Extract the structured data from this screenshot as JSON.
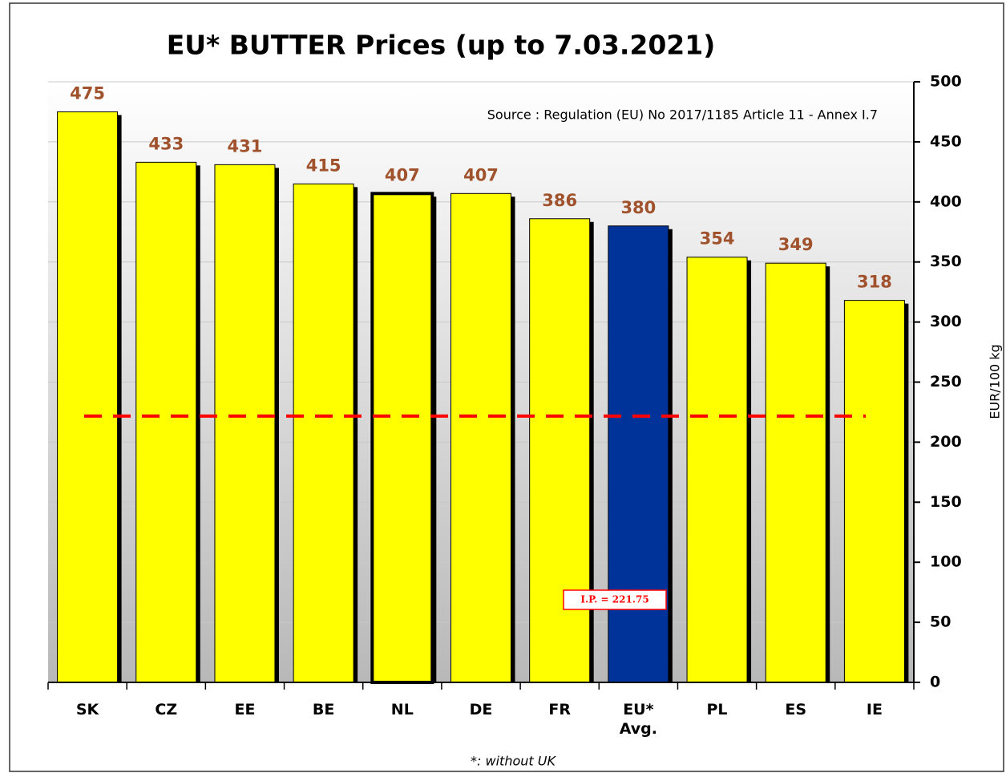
{
  "chart_data": {
    "type": "bar",
    "title": "EU*  BUTTER Prices  (up to 7.03.2021)",
    "annotation": "Source : Regulation (EU) No 2017/1185 Article 11 - Annex I.7",
    "footnote": "*: without UK",
    "y_axis_label": "EUR/100 kg",
    "categories": [
      "SK",
      "CZ",
      "EE",
      "BE",
      "NL",
      "DE",
      "FR",
      "EU*\nAvg.",
      "PL",
      "ES",
      "IE"
    ],
    "values": [
      475,
      433,
      431,
      415,
      407,
      407,
      386,
      380,
      354,
      349,
      318
    ],
    "colors": [
      "#ffff00",
      "#ffff00",
      "#ffff00",
      "#ffff00",
      "#ffff00",
      "#ffff00",
      "#ffff00",
      "#003399",
      "#ffff00",
      "#ffff00",
      "#ffff00"
    ],
    "edge_widths": [
      1,
      1,
      1,
      1,
      4,
      1,
      1,
      1,
      1,
      1,
      1
    ],
    "value_label_color": "#a0522d",
    "reference_line": {
      "value": 221.75,
      "label": "I.P. = 221.75",
      "color": "#ff0000"
    },
    "ylim": [
      0,
      500
    ],
    "yticks": [
      0,
      50,
      100,
      150,
      200,
      250,
      300,
      350,
      400,
      450,
      500
    ],
    "y_axis_side": "right",
    "grid": true
  }
}
